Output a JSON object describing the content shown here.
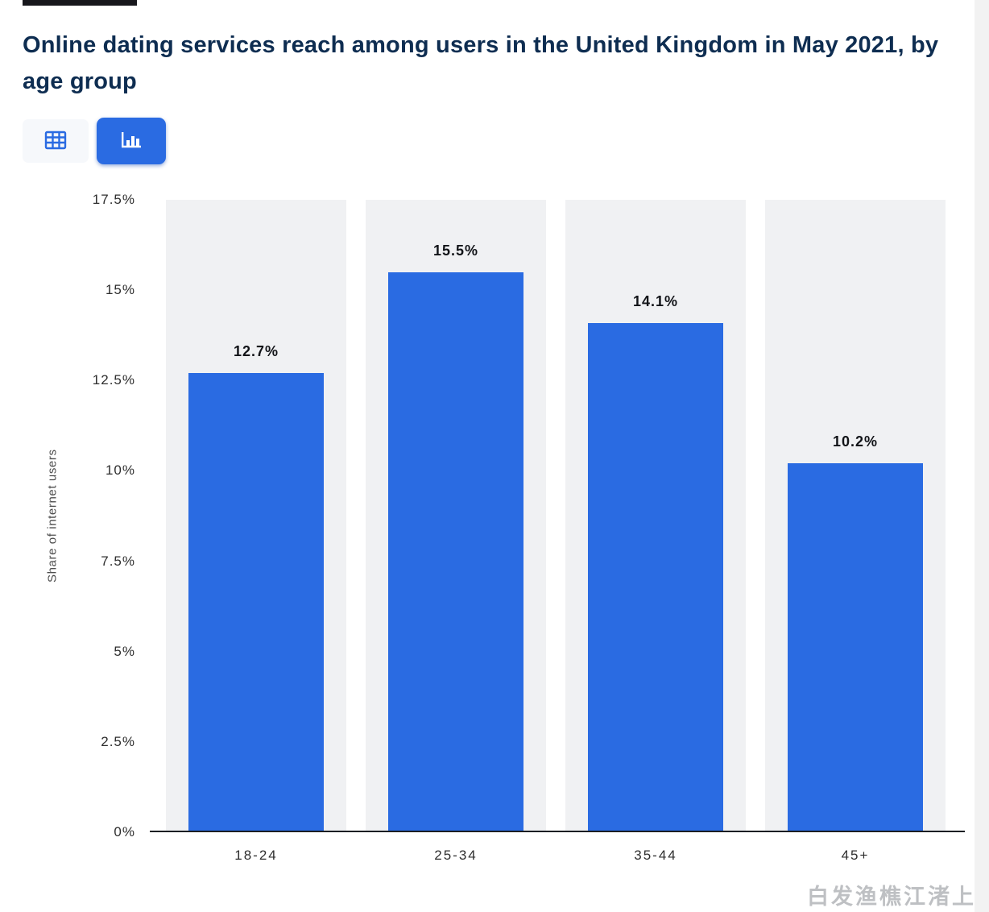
{
  "header": {
    "title": "Online dating services reach among users in the United Kingdom in May 2021, by age group"
  },
  "toolbar": {
    "buttons": [
      {
        "name": "table-view",
        "icon": "table-grid-icon",
        "active": false
      },
      {
        "name": "chart-view",
        "icon": "bar-chart-icon",
        "active": true
      }
    ]
  },
  "chart_data": {
    "type": "bar",
    "title": "Online dating services reach among users in the United Kingdom in May 2021, by age group",
    "categories": [
      "18-24",
      "25-34",
      "35-44",
      "45+"
    ],
    "values": [
      12.7,
      15.5,
      14.1,
      10.2
    ],
    "value_labels": [
      "12.7%",
      "15.5%",
      "14.1%",
      "10.2%"
    ],
    "xlabel": "",
    "ylabel": "Share of internet users",
    "ylim": [
      0,
      17.5
    ],
    "yticks": [
      0,
      2.5,
      5,
      7.5,
      10,
      12.5,
      15,
      17.5
    ],
    "ytick_labels": [
      "0%",
      "2.5%",
      "5%",
      "7.5%",
      "10%",
      "12.5%",
      "15%",
      "17.5%"
    ],
    "grid": false,
    "legend": false,
    "bar_color": "#2a6be2",
    "band_color": "#f0f1f3"
  },
  "watermark": {
    "text": "白发渔樵江渚上"
  },
  "colors": {
    "accent_blue": "#2a6be2",
    "title_navy": "#0e2d51",
    "band_gray": "#f0f1f3",
    "axis_dark": "#1b1e23"
  }
}
